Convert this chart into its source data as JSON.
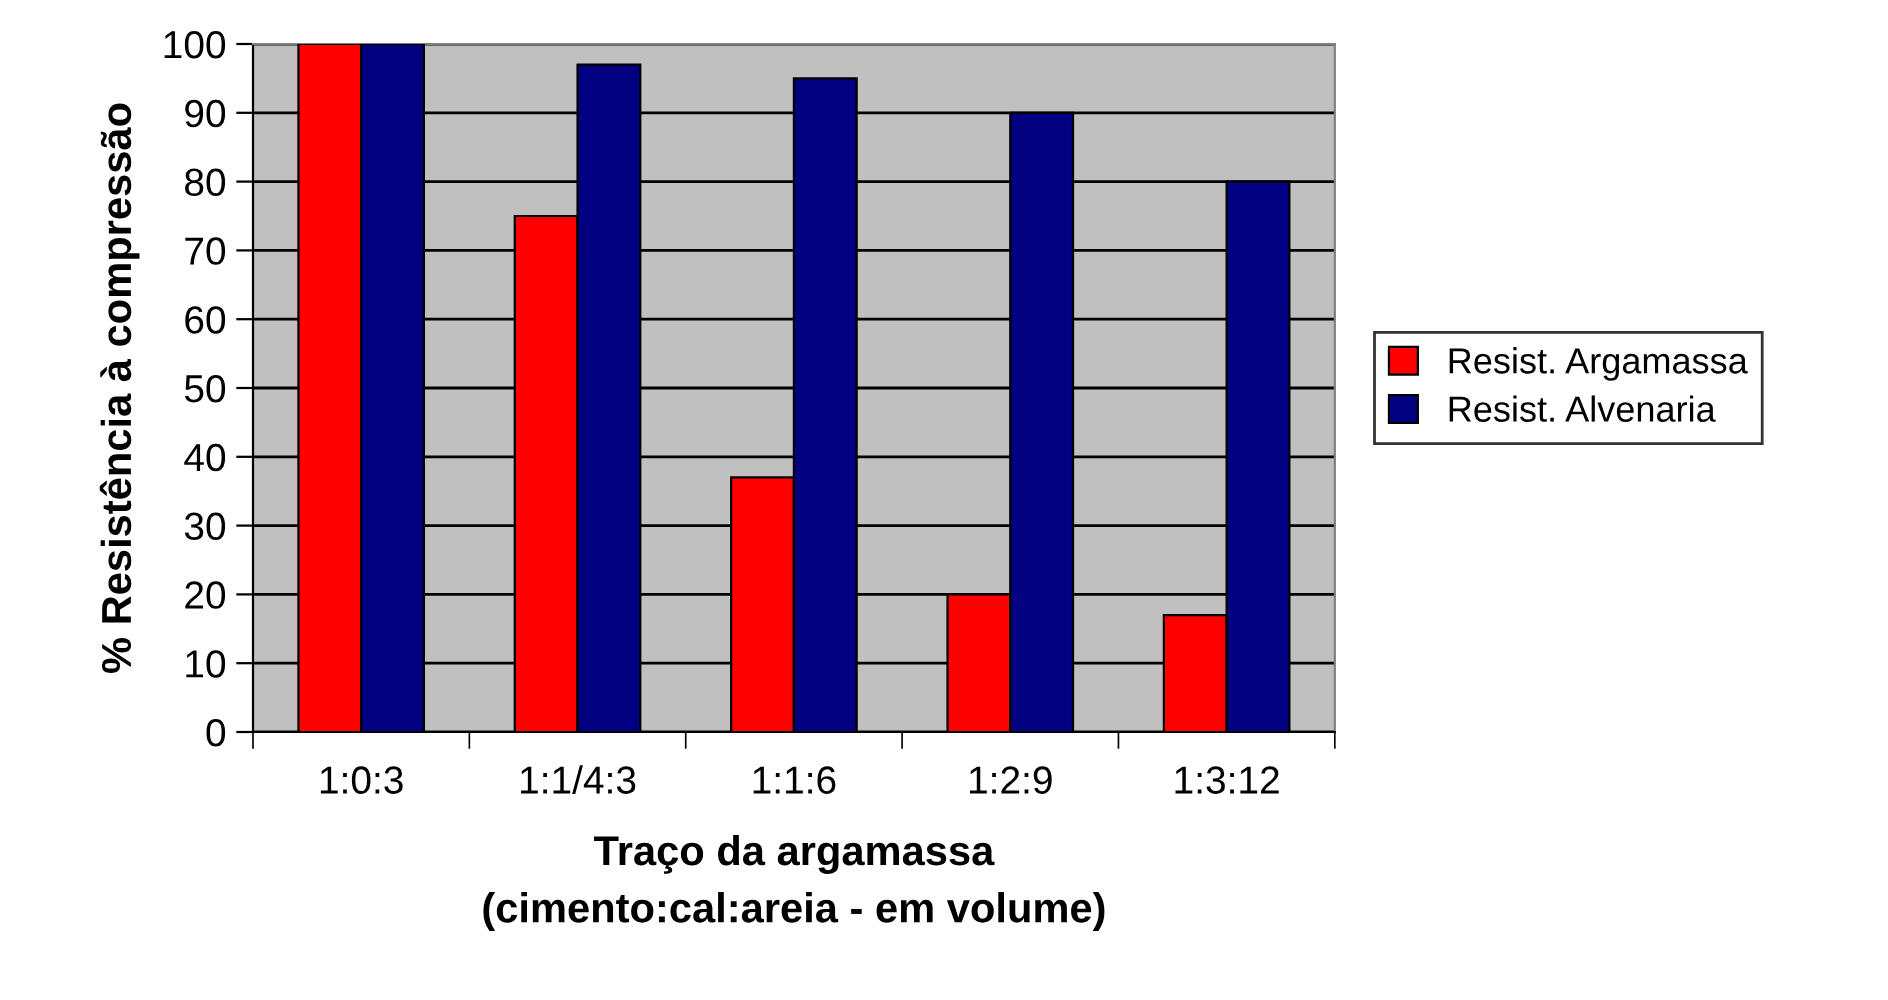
{
  "chart_data": {
    "type": "bar",
    "xlabel": "Traço da argamassa\n(cimento:cal:areia - em volume)",
    "ylabel": "% Resistência à compressão",
    "categories": [
      "1:0:3",
      "1:1/4:3",
      "1:1:6",
      "1:2:9",
      "1:3:12"
    ],
    "series": [
      {
        "name": "Resist. Argamassa",
        "color": "#ff0000",
        "values": [
          100,
          75,
          37,
          20,
          17
        ]
      },
      {
        "name": "Resist. Alvenaria",
        "color": "#000080",
        "values": [
          100,
          97,
          95,
          90,
          80
        ]
      }
    ],
    "ylim": [
      0,
      100
    ],
    "yticks": [
      0,
      10,
      20,
      30,
      40,
      50,
      60,
      70,
      80,
      90,
      100
    ],
    "grid": "y",
    "legend": "right"
  }
}
